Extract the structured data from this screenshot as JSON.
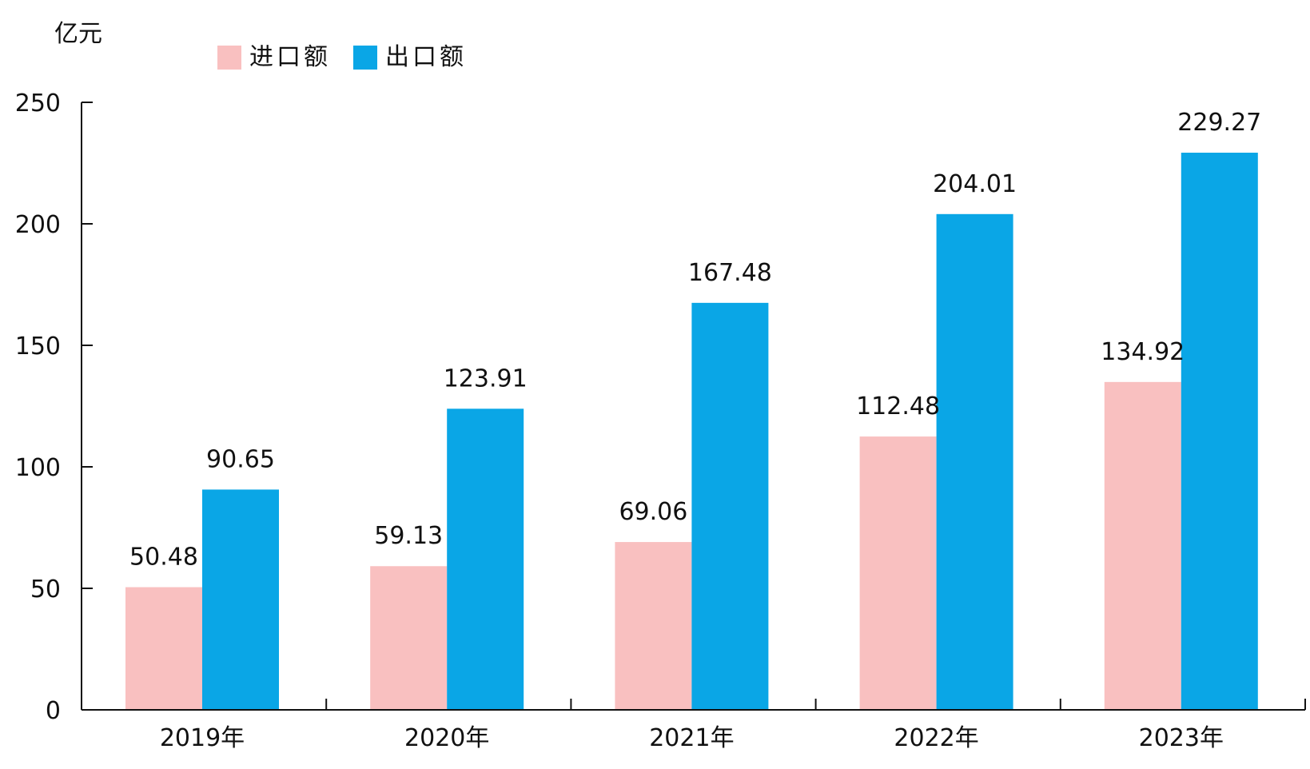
{
  "chart_data": {
    "type": "bar",
    "unit_label": "亿元",
    "categories": [
      "2019年",
      "2020年",
      "2021年",
      "2022年",
      "2023年"
    ],
    "series": [
      {
        "name": "进口额",
        "color": "#f9c0c0",
        "values": [
          50.48,
          59.13,
          69.06,
          112.48,
          134.92
        ]
      },
      {
        "name": "出口额",
        "color": "#0aa6e6",
        "values": [
          90.65,
          123.91,
          167.48,
          204.01,
          229.27
        ]
      }
    ],
    "y_ticks": [
      0,
      50,
      100,
      150,
      200,
      250
    ],
    "ylim": [
      0,
      250
    ],
    "grid": false,
    "legend_position": "top-left"
  }
}
